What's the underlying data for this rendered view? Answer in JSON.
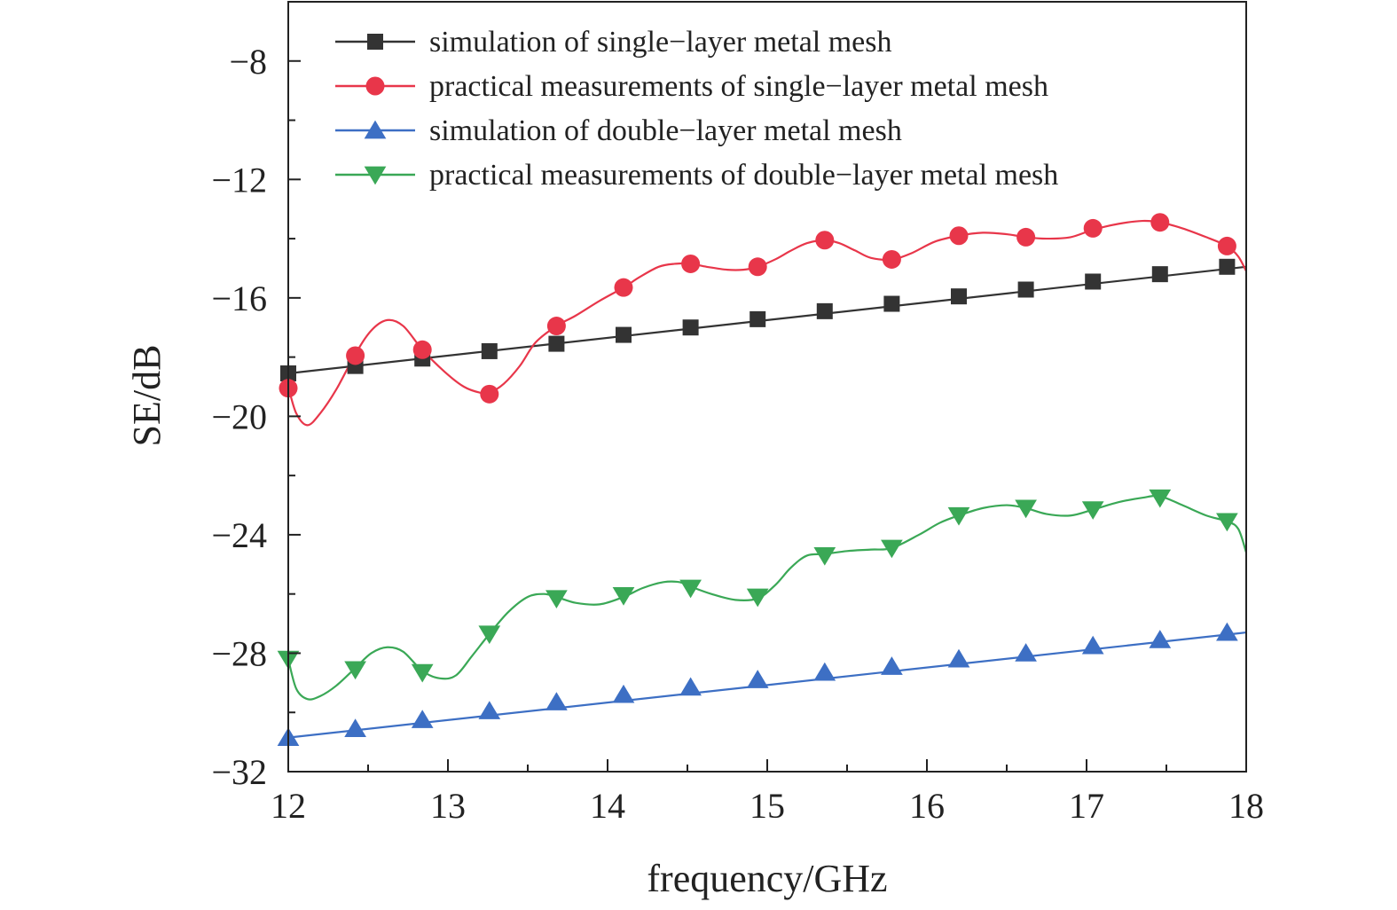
{
  "chart_data": {
    "type": "line",
    "xlabel": "frequency/GHz",
    "ylabel": "SE/dB",
    "xlim": [
      12,
      18
    ],
    "ylim": [
      -32,
      -6
    ],
    "xticks": [
      12,
      13,
      14,
      15,
      16,
      17,
      18
    ],
    "yticks": [
      -32,
      -28,
      -24,
      -20,
      -16,
      -12,
      -8
    ],
    "ytick_labels": [
      "−32",
      "−28",
      "−24",
      "−20",
      "−16",
      "−12",
      "−8"
    ],
    "grid": false,
    "legend_position": "top-left",
    "series": [
      {
        "name": "simulation of single−layer metal mesh",
        "color": "#333333",
        "marker": "square",
        "curve": [
          [
            12.0,
            -18.55
          ],
          [
            18.0,
            -14.95
          ]
        ],
        "markers": [
          [
            12.0,
            -18.55
          ],
          [
            12.42,
            -18.3
          ],
          [
            12.84,
            -18.05
          ],
          [
            13.26,
            -17.8
          ],
          [
            13.68,
            -17.55
          ],
          [
            14.1,
            -17.25
          ],
          [
            14.52,
            -17.0
          ],
          [
            14.94,
            -16.72
          ],
          [
            15.36,
            -16.45
          ],
          [
            15.78,
            -16.2
          ],
          [
            16.2,
            -15.95
          ],
          [
            16.62,
            -15.72
          ],
          [
            17.04,
            -15.45
          ],
          [
            17.46,
            -15.2
          ],
          [
            17.88,
            -14.95
          ]
        ]
      },
      {
        "name": "practical measurements of single−layer metal mesh",
        "color": "#e8364a",
        "marker": "circle",
        "curve": [
          [
            12.0,
            -19.0
          ],
          [
            12.05,
            -19.9
          ],
          [
            12.12,
            -20.3
          ],
          [
            12.2,
            -19.9
          ],
          [
            12.3,
            -19.1
          ],
          [
            12.42,
            -17.9
          ],
          [
            12.52,
            -17.1
          ],
          [
            12.62,
            -16.75
          ],
          [
            12.72,
            -16.95
          ],
          [
            12.84,
            -17.75
          ],
          [
            12.98,
            -18.5
          ],
          [
            13.1,
            -19.0
          ],
          [
            13.2,
            -19.2
          ],
          [
            13.26,
            -19.2
          ],
          [
            13.35,
            -18.9
          ],
          [
            13.45,
            -18.3
          ],
          [
            13.55,
            -17.5
          ],
          [
            13.68,
            -16.95
          ],
          [
            13.8,
            -16.6
          ],
          [
            13.95,
            -16.1
          ],
          [
            14.1,
            -15.65
          ],
          [
            14.2,
            -15.3
          ],
          [
            14.32,
            -14.95
          ],
          [
            14.42,
            -14.85
          ],
          [
            14.52,
            -14.85
          ],
          [
            14.62,
            -14.95
          ],
          [
            14.75,
            -15.05
          ],
          [
            14.85,
            -15.05
          ],
          [
            14.94,
            -14.95
          ],
          [
            15.05,
            -14.7
          ],
          [
            15.15,
            -14.4
          ],
          [
            15.25,
            -14.15
          ],
          [
            15.36,
            -14.05
          ],
          [
            15.45,
            -14.15
          ],
          [
            15.55,
            -14.4
          ],
          [
            15.65,
            -14.65
          ],
          [
            15.78,
            -14.7
          ],
          [
            15.9,
            -14.5
          ],
          [
            16.05,
            -14.1
          ],
          [
            16.2,
            -13.9
          ],
          [
            16.35,
            -13.8
          ],
          [
            16.5,
            -13.85
          ],
          [
            16.62,
            -13.95
          ],
          [
            16.75,
            -14.0
          ],
          [
            16.9,
            -13.95
          ],
          [
            17.04,
            -13.7
          ],
          [
            17.2,
            -13.5
          ],
          [
            17.35,
            -13.4
          ],
          [
            17.46,
            -13.45
          ],
          [
            17.6,
            -13.65
          ],
          [
            17.75,
            -13.95
          ],
          [
            17.88,
            -14.25
          ],
          [
            17.95,
            -14.6
          ],
          [
            18.0,
            -15.1
          ]
        ],
        "markers": [
          [
            12.0,
            -19.05
          ],
          [
            12.42,
            -17.95
          ],
          [
            12.84,
            -17.75
          ],
          [
            13.26,
            -19.25
          ],
          [
            13.68,
            -16.95
          ],
          [
            14.1,
            -15.65
          ],
          [
            14.52,
            -14.85
          ],
          [
            14.94,
            -14.95
          ],
          [
            15.36,
            -14.05
          ],
          [
            15.78,
            -14.7
          ],
          [
            16.2,
            -13.9
          ],
          [
            16.62,
            -13.95
          ],
          [
            17.04,
            -13.65
          ],
          [
            17.46,
            -13.45
          ],
          [
            17.88,
            -14.25
          ]
        ]
      },
      {
        "name": "simulation of double−layer metal mesh",
        "color": "#3d6fc4",
        "marker": "triangle-up",
        "curve": [
          [
            12.0,
            -30.85
          ],
          [
            18.0,
            -27.3
          ]
        ],
        "markers": [
          [
            12.0,
            -30.85
          ],
          [
            12.42,
            -30.55
          ],
          [
            12.84,
            -30.25
          ],
          [
            13.26,
            -29.95
          ],
          [
            13.68,
            -29.65
          ],
          [
            14.1,
            -29.4
          ],
          [
            14.52,
            -29.15
          ],
          [
            14.94,
            -28.9
          ],
          [
            15.36,
            -28.65
          ],
          [
            15.78,
            -28.45
          ],
          [
            16.2,
            -28.2
          ],
          [
            16.62,
            -28.0
          ],
          [
            17.04,
            -27.75
          ],
          [
            17.46,
            -27.55
          ],
          [
            17.88,
            -27.3
          ]
        ]
      },
      {
        "name": "practical measurements of double−layer metal mesh",
        "color": "#3aa856",
        "marker": "triangle-down",
        "curve": [
          [
            12.0,
            -28.2
          ],
          [
            12.05,
            -29.2
          ],
          [
            12.12,
            -29.55
          ],
          [
            12.2,
            -29.45
          ],
          [
            12.3,
            -29.1
          ],
          [
            12.42,
            -28.5
          ],
          [
            12.52,
            -28.0
          ],
          [
            12.62,
            -27.8
          ],
          [
            12.72,
            -27.95
          ],
          [
            12.84,
            -28.6
          ],
          [
            12.95,
            -28.85
          ],
          [
            13.05,
            -28.75
          ],
          [
            13.15,
            -28.1
          ],
          [
            13.26,
            -27.35
          ],
          [
            13.38,
            -26.6
          ],
          [
            13.5,
            -26.1
          ],
          [
            13.6,
            -26.0
          ],
          [
            13.68,
            -26.1
          ],
          [
            13.8,
            -26.3
          ],
          [
            13.95,
            -26.35
          ],
          [
            14.1,
            -26.1
          ],
          [
            14.22,
            -25.8
          ],
          [
            14.35,
            -25.6
          ],
          [
            14.45,
            -25.6
          ],
          [
            14.52,
            -25.75
          ],
          [
            14.65,
            -26.0
          ],
          [
            14.8,
            -26.2
          ],
          [
            14.94,
            -26.15
          ],
          [
            15.05,
            -25.7
          ],
          [
            15.15,
            -25.1
          ],
          [
            15.25,
            -24.7
          ],
          [
            15.36,
            -24.65
          ],
          [
            15.5,
            -24.55
          ],
          [
            15.65,
            -24.5
          ],
          [
            15.78,
            -24.45
          ],
          [
            15.95,
            -24.0
          ],
          [
            16.08,
            -23.6
          ],
          [
            16.2,
            -23.35
          ],
          [
            16.35,
            -23.1
          ],
          [
            16.5,
            -23.0
          ],
          [
            16.62,
            -23.1
          ],
          [
            16.75,
            -23.3
          ],
          [
            16.9,
            -23.35
          ],
          [
            17.04,
            -23.15
          ],
          [
            17.2,
            -22.9
          ],
          [
            17.35,
            -22.75
          ],
          [
            17.46,
            -22.7
          ],
          [
            17.6,
            -23.0
          ],
          [
            17.75,
            -23.35
          ],
          [
            17.88,
            -23.55
          ],
          [
            17.95,
            -23.8
          ],
          [
            18.0,
            -24.6
          ]
        ],
        "markers": [
          [
            12.0,
            -28.2
          ],
          [
            12.42,
            -28.55
          ],
          [
            12.84,
            -28.65
          ],
          [
            13.26,
            -27.35
          ],
          [
            13.68,
            -26.15
          ],
          [
            14.1,
            -26.05
          ],
          [
            14.52,
            -25.8
          ],
          [
            14.94,
            -26.1
          ],
          [
            15.36,
            -24.7
          ],
          [
            15.78,
            -24.45
          ],
          [
            16.2,
            -23.35
          ],
          [
            16.62,
            -23.1
          ],
          [
            17.04,
            -23.15
          ],
          [
            17.46,
            -22.75
          ],
          [
            17.88,
            -23.55
          ]
        ]
      }
    ]
  }
}
